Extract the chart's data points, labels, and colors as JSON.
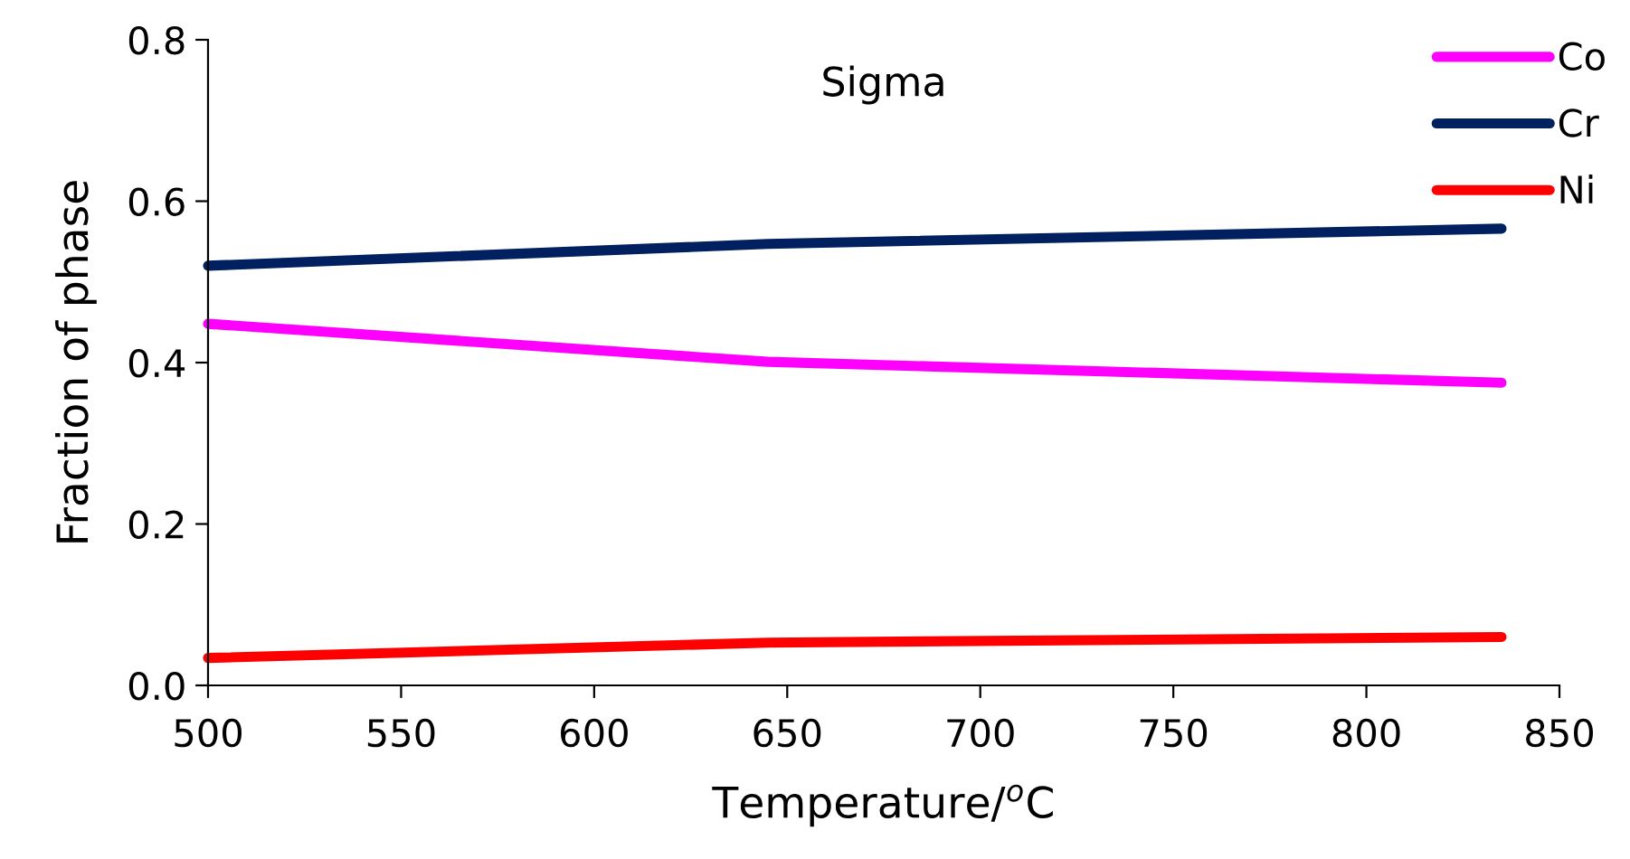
{
  "chart_data": {
    "type": "line",
    "title": "Sigma",
    "xlabel": "Temperature/$^{o}$C",
    "ylabel": "Fraction of phase",
    "x": [
      500,
      645,
      835
    ],
    "series": [
      {
        "name": "Co",
        "color": "#ff00ff",
        "values": [
          0.448,
          0.401,
          0.375
        ]
      },
      {
        "name": "Cr",
        "color": "#002060",
        "values": [
          0.52,
          0.547,
          0.566
        ]
      },
      {
        "name": "Ni",
        "color": "#ff0000",
        "values": [
          0.034,
          0.053,
          0.06
        ]
      }
    ],
    "xlim": [
      500,
      850
    ],
    "xticks": [
      500,
      550,
      600,
      650,
      700,
      750,
      800,
      850
    ],
    "ylim": [
      0,
      0.8
    ],
    "yticks": [
      {
        "value": 0,
        "label": "0.0"
      },
      0.2,
      0.4,
      0.6,
      0.8
    ],
    "grid": false,
    "legend": "top right",
    "marker": "none",
    "line_style": "solid"
  }
}
